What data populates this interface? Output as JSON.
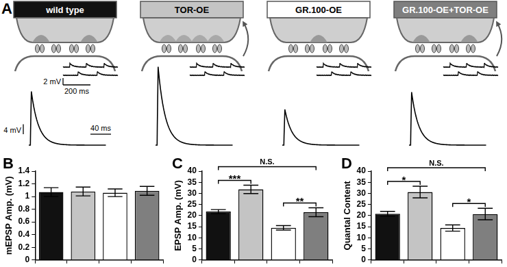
{
  "figure_a": {
    "label": "A",
    "conditions": [
      {
        "name": "wild type",
        "color": "#111111"
      },
      {
        "name": "TOR-OE",
        "color": "#c4c4c4"
      },
      {
        "name": "GR.100-OE",
        "color": "#ffffff"
      },
      {
        "name": "GR.100-OE+TOR-OE",
        "color": "#7f7f7f"
      }
    ],
    "mini_scale": [
      {
        "value": 2,
        "label": "2 mV"
      },
      {
        "value": 200,
        "label": "200 ms"
      }
    ],
    "evoked_scale": [
      {
        "value": 4,
        "label": "4 mV"
      },
      {
        "value": 40,
        "label": "40 ms"
      }
    ]
  },
  "chart_data": [
    {
      "panel": "B",
      "type": "bar",
      "y_label": "mEPSP Amp. (mV)",
      "categories": [
        null,
        null,
        null,
        null
      ],
      "values": [
        1.07,
        1.08,
        1.06,
        1.09
      ],
      "errors": [
        0.07,
        0.07,
        0.06,
        0.07
      ],
      "colors": [
        "#111111",
        "#c4c4c4",
        "#ffffff",
        "#7f7f7f"
      ],
      "ylim": [
        0,
        1.4
      ],
      "yticks": [
        0,
        0.2,
        0.4,
        0.6,
        0.8,
        1,
        1.2,
        1.4
      ],
      "grid": false,
      "tick_labels": "y"
    },
    {
      "panel": "C",
      "type": "bar",
      "y_label": "EPSP Amp. (mV)",
      "categories": [
        null,
        null,
        null,
        null
      ],
      "values": [
        21.8,
        31.8,
        14.5,
        21.5
      ],
      "errors": [
        0.9,
        1.9,
        1.0,
        2.0
      ],
      "colors": [
        "#111111",
        "#c4c4c4",
        "#ffffff",
        "#7f7f7f"
      ],
      "ylim": [
        0,
        40
      ],
      "yticks": [
        0,
        5,
        10,
        15,
        20,
        25,
        30,
        35,
        40
      ],
      "grid": false,
      "tick_labels": "y",
      "annotations": [
        {
          "text": "***",
          "from": 0,
          "to": 1
        },
        {
          "text": "**",
          "from": 2,
          "to": 3
        },
        {
          "text": "N.S.",
          "from": 0,
          "to": 3
        }
      ]
    },
    {
      "panel": "D",
      "type": "bar",
      "y_label": "Quantal Content",
      "categories": [
        null,
        null,
        null,
        null
      ],
      "values": [
        20.8,
        30.6,
        14.4,
        20.7
      ],
      "errors": [
        1.1,
        2.6,
        1.4,
        2.6
      ],
      "colors": [
        "#111111",
        "#c4c4c4",
        "#ffffff",
        "#7f7f7f"
      ],
      "ylim": [
        0,
        40
      ],
      "yticks": [
        0,
        5,
        10,
        15,
        20,
        25,
        30,
        35,
        40
      ],
      "grid": false,
      "tick_labels": "y",
      "annotations": [
        {
          "text": "*",
          "from": 0,
          "to": 1
        },
        {
          "text": "*",
          "from": 2,
          "to": 3
        },
        {
          "text": "N.S.",
          "from": 0,
          "to": 3
        }
      ]
    }
  ]
}
